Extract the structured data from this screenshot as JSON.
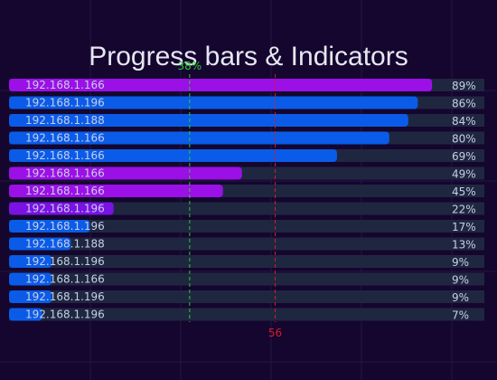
{
  "chart_data": {
    "type": "bar",
    "title": "Progress bars & Indicators",
    "xlim": [
      0,
      100
    ],
    "categories": [
      "192.168.1.166",
      "192.168.1.196",
      "192.168.1.188",
      "192.168.1.166",
      "192.168.1.166",
      "192.168.1.166",
      "192.168.1.166",
      "192.168.1.196",
      "192.168.1.196",
      "192.168.1.188",
      "192.168.1.196",
      "192.168.1.166",
      "192.168.1.196",
      "192.168.1.196"
    ],
    "values": [
      89,
      86,
      84,
      80,
      69,
      49,
      45,
      22,
      17,
      13,
      9,
      9,
      9,
      7
    ],
    "value_labels": [
      "89%",
      "86%",
      "84%",
      "80%",
      "69%",
      "49%",
      "45%",
      "22%",
      "17%",
      "13%",
      "9%",
      "9%",
      "9%",
      "7%"
    ],
    "bar_colors": [
      "#9b10e6",
      "#0a5ce8",
      "#0a5ce8",
      "#0a5ce8",
      "#0a5ce8",
      "#9b10e6",
      "#9b10e6",
      "#7a12e4",
      "#0a5ce8",
      "#0a5ce8",
      "#0a5ce8",
      "#0a5ce8",
      "#0a5ce8",
      "#0a5ce8"
    ],
    "reference_lines": [
      {
        "value": 38,
        "label": "38%",
        "color": "#2ec82e",
        "label_position": "top"
      },
      {
        "value": 56,
        "label": "56",
        "color": "#d81a2a",
        "label_position": "bottom"
      }
    ],
    "grid": true,
    "colors": {
      "background": "#14062e",
      "track": "#1f2740",
      "text": "#c9cde6",
      "title": "#e6e6f2",
      "gridline": "#241642"
    }
  }
}
